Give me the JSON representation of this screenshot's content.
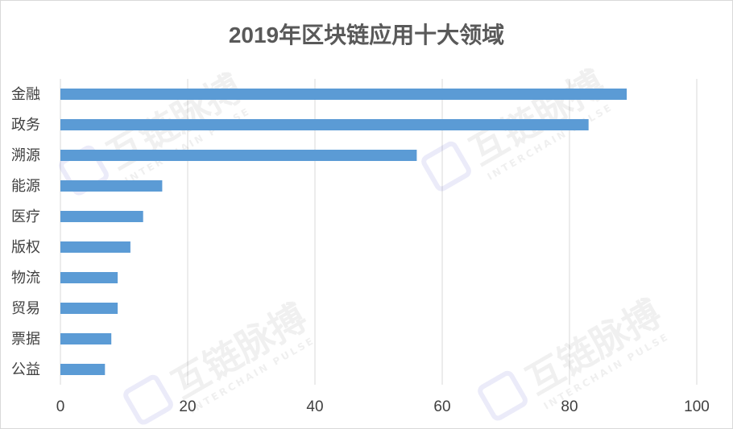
{
  "chart_data": {
    "type": "bar",
    "orientation": "horizontal",
    "title": "2019年区块链应用十大领域",
    "categories": [
      "金融",
      "政务",
      "溯源",
      "能源",
      "医疗",
      "版权",
      "物流",
      "贸易",
      "票据",
      "公益"
    ],
    "values": [
      89,
      83,
      56,
      16,
      13,
      11,
      9,
      9,
      8,
      7
    ],
    "xlim": [
      0,
      100
    ],
    "xticks": [
      0,
      20,
      40,
      60,
      80,
      100
    ],
    "grid": true,
    "legend": "none",
    "bar_color": "#5b9bd5"
  },
  "watermark": {
    "text": "互链脉搏",
    "subtext": "INTERCHAIN PULSE"
  }
}
